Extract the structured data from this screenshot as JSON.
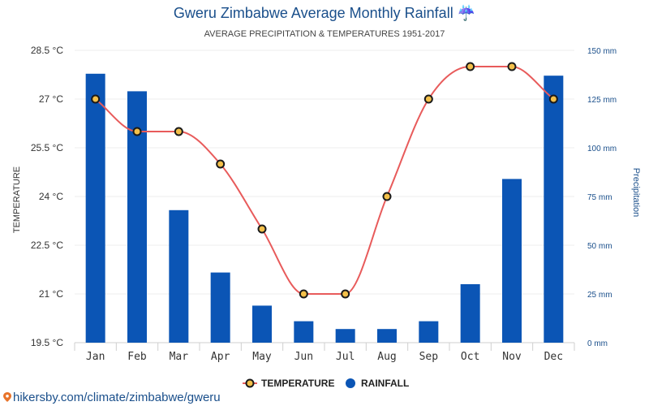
{
  "header": {
    "title": "Gweru Zimbabwe Average Monthly Rainfall",
    "title_icon": "umbrella-icon",
    "subtitle": "AVERAGE PRECIPITATION & TEMPERATURES 1951-2017"
  },
  "footer": {
    "source": "hikersby.com/climate/zimbabwe/gweru",
    "icon": "location-pin-icon"
  },
  "colors": {
    "bar": "#0b55b5",
    "line": "#e85b5b",
    "marker_fill": "#f3c04a",
    "marker_stroke": "#1a1a1a",
    "text_blue": "#1a4f8b"
  },
  "chart_data": {
    "type": "bar",
    "categories": [
      "Jan",
      "Feb",
      "Mar",
      "Apr",
      "May",
      "Jun",
      "Jul",
      "Aug",
      "Sep",
      "Oct",
      "Nov",
      "Dec"
    ],
    "series": [
      {
        "name": "TEMPERATURE",
        "type": "line",
        "axis": "left",
        "values": [
          27,
          26,
          26,
          25,
          23,
          21,
          21,
          24,
          27,
          28,
          28,
          27
        ]
      },
      {
        "name": "RAINFALL",
        "type": "bar",
        "axis": "right",
        "values": [
          138,
          129,
          68,
          36,
          19,
          11,
          7,
          7,
          11,
          30,
          84,
          137
        ]
      }
    ],
    "ylabel": "TEMPERATURE",
    "y2label": "Precipitation",
    "ylim": [
      19.5,
      28.5
    ],
    "y2lim": [
      0,
      150
    ],
    "yticks": [
      "19.5 °C",
      "21 °C",
      "22.5 °C",
      "24 °C",
      "25.5 °C",
      "27 °C",
      "28.5 °C"
    ],
    "y2ticks": [
      "0 mm",
      "25 mm",
      "50 mm",
      "75 mm",
      "100 mm",
      "125 mm",
      "150 mm"
    ],
    "legend_position": "bottom-center",
    "grid": true
  }
}
